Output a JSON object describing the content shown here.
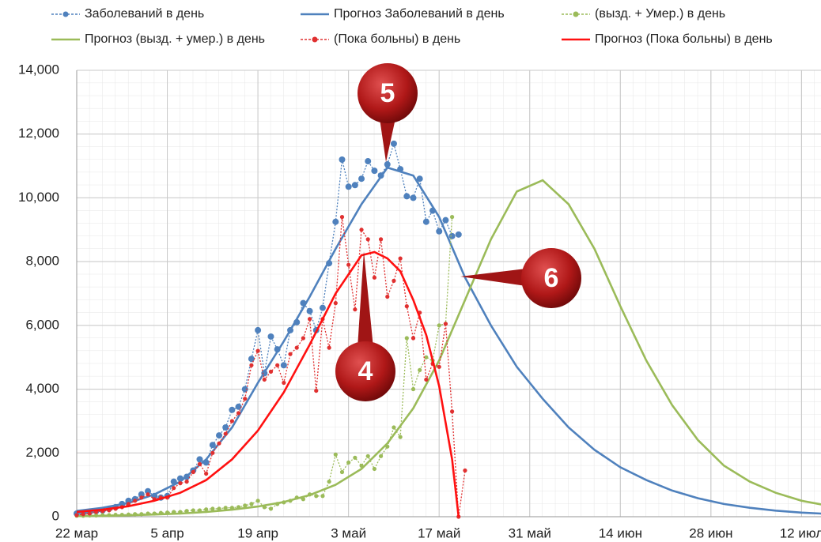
{
  "chart_data": {
    "type": "line",
    "xlim": [
      0,
      115
    ],
    "xticks": [
      {
        "value": 0,
        "label": "22 мар"
      },
      {
        "value": 14,
        "label": "5 апр"
      },
      {
        "value": 28,
        "label": "19 апр"
      },
      {
        "value": 42,
        "label": "3 май"
      },
      {
        "value": 56,
        "label": "17 май"
      },
      {
        "value": 70,
        "label": "31 май"
      },
      {
        "value": 84,
        "label": "14 июн"
      },
      {
        "value": 98,
        "label": "28 июн"
      },
      {
        "value": 112,
        "label": "12 июл"
      }
    ],
    "ylim": [
      0,
      14000
    ],
    "yticks": [
      0,
      {
        "value": 2000,
        "label": "2,000"
      },
      {
        "value": 4000,
        "label": "4,000"
      },
      {
        "value": 6000,
        "label": "6,000"
      },
      {
        "value": 8000,
        "label": "8,000"
      },
      {
        "value": 10000,
        "label": "10,000"
      },
      {
        "value": 12000,
        "label": "12,000"
      },
      {
        "value": 14000,
        "label": "14,000"
      }
    ],
    "grid": true,
    "legend": "top",
    "series": [
      {
        "name": "Заболеваний в день",
        "color": "#4f81bd",
        "style": "dotted",
        "x": [
          0,
          1,
          2,
          3,
          4,
          5,
          6,
          7,
          8,
          9,
          10,
          11,
          12,
          13,
          14,
          15,
          16,
          17,
          18,
          19,
          20,
          21,
          22,
          23,
          24,
          25,
          26,
          27,
          28,
          29,
          30,
          31,
          32,
          33,
          34,
          35,
          36,
          37,
          38,
          39,
          40,
          41,
          42,
          43,
          44,
          45,
          46,
          47,
          48,
          49,
          50,
          51,
          52,
          53,
          54,
          55,
          56,
          57,
          58,
          59
        ],
        "values": [
          100,
          120,
          150,
          180,
          200,
          250,
          300,
          400,
          500,
          550,
          700,
          800,
          650,
          600,
          650,
          1100,
          1200,
          1250,
          1450,
          1800,
          1700,
          2250,
          2550,
          2800,
          3350,
          3450,
          4000,
          4950,
          5850,
          4500,
          5650,
          5250,
          4750,
          5850,
          6100,
          6700,
          6450,
          5850,
          6550,
          7950,
          9250,
          11200,
          10350,
          10400,
          10600,
          11150,
          10850,
          10700,
          11050,
          11700,
          10900,
          10050,
          10000,
          10600,
          9250,
          9600,
          8950,
          9300,
          8800,
          8850
        ]
      },
      {
        "name": "Прогноз Заболеваний в день",
        "color": "#4f81bd",
        "style": "solid",
        "x": [
          0,
          4,
          8,
          12,
          16,
          20,
          24,
          28,
          32,
          36,
          40,
          44,
          48,
          52,
          56,
          60,
          64,
          68,
          72,
          76,
          80,
          84,
          88,
          92,
          96,
          100,
          104,
          108,
          112,
          116
        ],
        "values": [
          180,
          280,
          430,
          700,
          1100,
          1800,
          2800,
          4200,
          5500,
          6900,
          8400,
          9800,
          10950,
          10700,
          9400,
          7500,
          6000,
          4700,
          3700,
          2800,
          2100,
          1550,
          1150,
          820,
          580,
          400,
          280,
          190,
          130,
          90
        ]
      },
      {
        "name": "(вызд. + Умер.) в день",
        "color": "#9bbb59",
        "style": "dotted",
        "x": [
          0,
          1,
          2,
          3,
          4,
          5,
          6,
          7,
          8,
          9,
          10,
          11,
          12,
          13,
          14,
          15,
          16,
          17,
          18,
          19,
          20,
          21,
          22,
          23,
          24,
          25,
          26,
          27,
          28,
          29,
          30,
          31,
          32,
          33,
          34,
          35,
          36,
          37,
          38,
          39,
          40,
          41,
          42,
          43,
          44,
          45,
          46,
          47,
          48,
          49,
          50,
          51,
          52,
          53,
          54,
          55,
          56,
          57,
          58
        ],
        "values": [
          30,
          30,
          40,
          40,
          50,
          50,
          60,
          60,
          70,
          80,
          80,
          100,
          100,
          120,
          130,
          150,
          150,
          180,
          200,
          200,
          230,
          250,
          250,
          280,
          280,
          300,
          350,
          400,
          500,
          300,
          250,
          400,
          450,
          500,
          600,
          550,
          700,
          650,
          650,
          1100,
          1950,
          1400,
          1700,
          1850,
          1600,
          1900,
          1500,
          1900,
          2200,
          2800,
          2500,
          5600,
          4000,
          4600,
          5000,
          4900,
          6000,
          6050,
          9400
        ]
      },
      {
        "name": "Прогноз  (вызд. + умер.) в день",
        "color": "#9bbb59",
        "style": "solid",
        "x": [
          0,
          4,
          8,
          12,
          16,
          20,
          24,
          28,
          32,
          36,
          40,
          44,
          48,
          52,
          56,
          60,
          64,
          68,
          72,
          76,
          80,
          84,
          88,
          92,
          96,
          100,
          104,
          108,
          112,
          116
        ],
        "values": [
          20,
          30,
          45,
          70,
          100,
          150,
          220,
          320,
          460,
          680,
          1000,
          1500,
          2300,
          3400,
          4900,
          6800,
          8700,
          10200,
          10550,
          9800,
          8400,
          6600,
          4900,
          3500,
          2400,
          1600,
          1100,
          750,
          500,
          350
        ]
      },
      {
        "name": "(Пока больны) в день",
        "color": "#e03030",
        "style": "dotted",
        "x": [
          0,
          1,
          2,
          3,
          4,
          5,
          6,
          7,
          8,
          9,
          10,
          11,
          12,
          13,
          14,
          15,
          16,
          17,
          18,
          19,
          20,
          21,
          22,
          23,
          24,
          25,
          26,
          27,
          28,
          29,
          30,
          31,
          32,
          33,
          34,
          35,
          36,
          37,
          38,
          39,
          40,
          41,
          42,
          43,
          44,
          45,
          46,
          47,
          48,
          49,
          50,
          51,
          52,
          53,
          54,
          55,
          56,
          57,
          58,
          59,
          60
        ],
        "values": [
          50,
          80,
          100,
          150,
          180,
          200,
          250,
          300,
          400,
          500,
          600,
          700,
          550,
          600,
          600,
          900,
          1050,
          1100,
          1400,
          1650,
          1350,
          2000,
          2300,
          2600,
          3000,
          3250,
          3700,
          4750,
          5200,
          4300,
          4550,
          4750,
          4200,
          5100,
          5300,
          5600,
          6200,
          3950,
          6200,
          5300,
          6700,
          9400,
          7900,
          6500,
          9000,
          8700,
          7500,
          8700,
          6900,
          7400,
          8100,
          6600,
          5600,
          6400,
          4300,
          4800,
          4700,
          6050,
          3300,
          0,
          1450
        ]
      },
      {
        "name": "Прогноз (Пока больны) в день",
        "color": "#ff1010",
        "style": "solid",
        "x": [
          0,
          4,
          8,
          12,
          16,
          20,
          24,
          28,
          32,
          36,
          40,
          44,
          46,
          48,
          50,
          52,
          54,
          56,
          58,
          59
        ],
        "values": [
          150,
          220,
          330,
          500,
          750,
          1150,
          1800,
          2700,
          3900,
          5400,
          7000,
          8200,
          8300,
          8100,
          7700,
          6800,
          5700,
          4100,
          1800,
          0
        ]
      }
    ],
    "annotations": [
      {
        "text": "5"
      },
      {
        "text": "4"
      },
      {
        "text": "6"
      }
    ]
  }
}
